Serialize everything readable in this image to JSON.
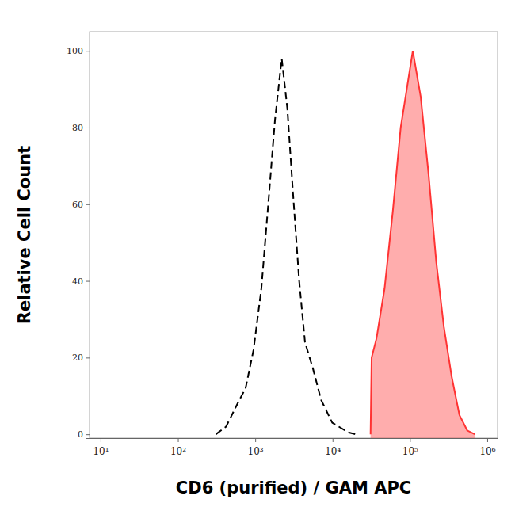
{
  "chart_data": {
    "type": "line",
    "x_label": "CD6 (purified) / GAM APC",
    "y_label": "Relative Cell Count",
    "log": "x",
    "grid": false,
    "xlim": [
      7.2,
      1360000
    ],
    "xticks": [
      {
        "value": 10,
        "label": "10¹"
      },
      {
        "value": 100,
        "label": "10²"
      },
      {
        "value": 1000,
        "label": "10³"
      },
      {
        "value": 10000,
        "label": "10⁴"
      },
      {
        "value": 100000,
        "label": "10⁵"
      },
      {
        "value": 1000000,
        "label": "10⁶"
      }
    ],
    "ylim": [
      -1,
      105
    ],
    "yticks": [
      0,
      20,
      40,
      60,
      80,
      100
    ],
    "series": [
      {
        "type": "line",
        "color": "#000000",
        "line_style": "dashed",
        "x": [
          310,
          420,
          590,
          750,
          950,
          1200,
          1500,
          1800,
          2200,
          2600,
          3100,
          3700,
          4400,
          5600,
          7100,
          9900,
          16000,
          20000
        ],
        "values": [
          0,
          2,
          8,
          12,
          22,
          38,
          62,
          82,
          98,
          85,
          62,
          40,
          24,
          17,
          9,
          3,
          0.5,
          0
        ]
      },
      {
        "type": "area",
        "color": "#ff3333",
        "line_style": "solid",
        "x": [
          31000,
          32000,
          37000,
          47000,
          60000,
          76000,
          91000,
          109000,
          138000,
          174000,
          219000,
          275000,
          347000,
          437000,
          550000,
          690000
        ],
        "values": [
          0,
          20,
          25,
          38,
          58,
          80,
          90,
          100,
          88,
          68,
          45,
          28,
          15,
          5,
          1,
          0
        ]
      }
    ]
  }
}
